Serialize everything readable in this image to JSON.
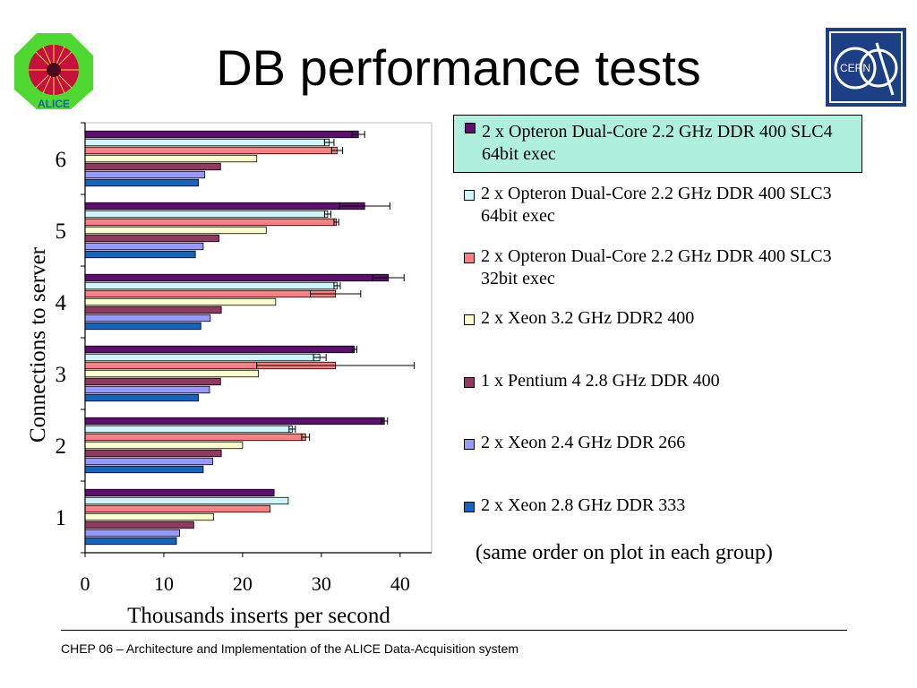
{
  "slide": {
    "title": "DB performance tests",
    "note": "(same order on plot in each group)",
    "footer": "CHEP 06 – Architecture and Implementation of the ALICE Data-Acquisition system",
    "logos": {
      "left": "ALICE",
      "right": "CERN"
    }
  },
  "chart_data": {
    "type": "bar",
    "orientation": "horizontal",
    "xlabel": "Thousands inserts per second",
    "ylabel": "Connections to server",
    "xlim": [
      0,
      44
    ],
    "xticks": [
      0,
      10,
      20,
      30,
      40
    ],
    "categories": [
      "1",
      "2",
      "3",
      "4",
      "5",
      "6"
    ],
    "grid": false,
    "legend_position": "right",
    "series": [
      {
        "name": "2 x Opteron Dual-Core 2.2 GHz DDR 400 SLC4 64bit exec",
        "color": "#5c0f6b",
        "values": [
          24.0,
          38.0,
          34.2,
          38.5,
          35.5,
          34.7
        ],
        "errors": [
          0.0,
          0.4,
          0.3,
          2.0,
          3.2,
          0.8
        ]
      },
      {
        "name": "2 x Opteron Dual-Core 2.2 GHz DDR 400 SLC3 64bit exec",
        "color": "#ccf6f8",
        "values": [
          25.8,
          26.3,
          29.8,
          32.0,
          30.8,
          31.0
        ],
        "errors": [
          0.0,
          0.4,
          0.8,
          0.4,
          0.4,
          0.6
        ]
      },
      {
        "name": "2 x Opteron Dual-Core 2.2 GHz DDR 400 SLC3 32bit exec",
        "color": "#f98080",
        "values": [
          23.5,
          28.0,
          31.8,
          31.8,
          31.9,
          32.0
        ],
        "errors": [
          0.0,
          0.5,
          10.0,
          3.2,
          0.3,
          0.7
        ]
      },
      {
        "name": "2 x Xeon 3.2 GHz DDR2 400",
        "color": "#fbfbcb",
        "values": [
          16.3,
          20.0,
          22.0,
          24.2,
          23.0,
          21.8
        ],
        "errors": [
          0,
          0,
          0,
          0,
          0,
          0
        ]
      },
      {
        "name": "1 x Pentium 4 2.8 GHz DDR 400",
        "color": "#93385f",
        "values": [
          13.8,
          17.3,
          17.2,
          17.3,
          17.0,
          17.2
        ],
        "errors": [
          0,
          0,
          0,
          0,
          0,
          0
        ]
      },
      {
        "name": "2 x Xeon 2.4 GHz DDR 266",
        "color": "#9999f7",
        "values": [
          12.0,
          16.2,
          15.8,
          15.9,
          15.0,
          15.2
        ],
        "errors": [
          0,
          0,
          0,
          0,
          0,
          0
        ]
      },
      {
        "name": "2 x Xeon 2.8 GHz DDR 333",
        "color": "#1565c0",
        "values": [
          11.6,
          15.0,
          14.4,
          14.7,
          14.0,
          14.4
        ],
        "errors": [
          0,
          0,
          0,
          0,
          0,
          0
        ]
      }
    ]
  }
}
